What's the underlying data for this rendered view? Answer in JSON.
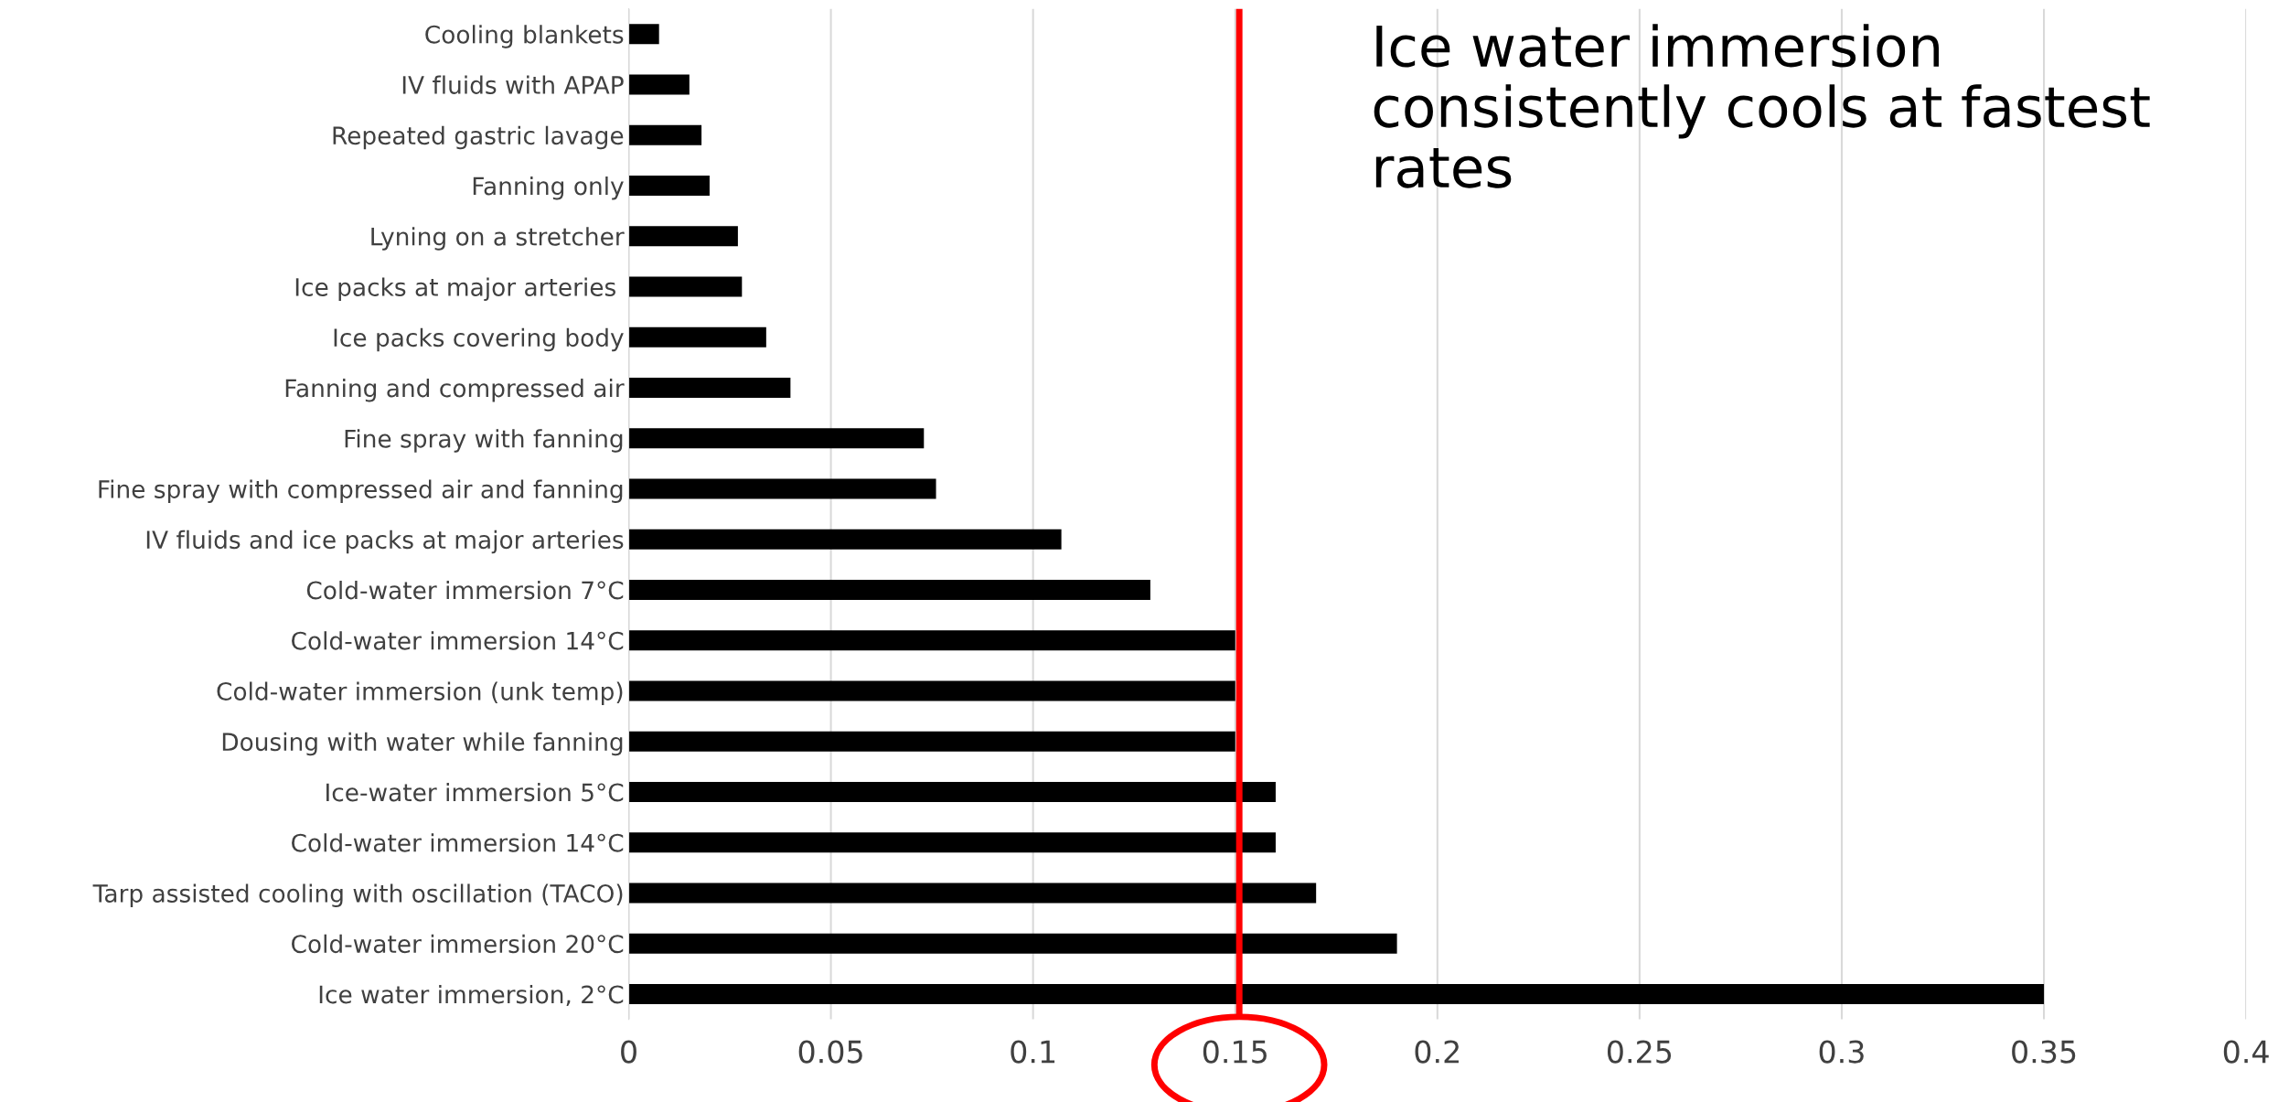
{
  "chart_data": {
    "type": "bar",
    "orientation": "horizontal",
    "categories": [
      "Cooling blankets",
      "IV fluids with APAP",
      "Repeated gastric lavage",
      "Fanning only",
      "Lyning on a stretcher",
      "Ice packs at major arteries ",
      "Ice packs covering body",
      "Fanning and compressed air",
      "Fine spray with fanning",
      "Fine spray with compressed air and fanning",
      "IV fluids and ice packs at major arteries",
      "Cold-water immersion 7°C",
      "Cold-water immersion 14°C",
      "Cold-water immersion (unk temp)",
      "Dousing with water while fanning",
      "Ice-water immersion 5°C",
      "Cold-water immersion 14°C",
      "Tarp assisted cooling with oscillation (TACO)",
      "Cold-water immersion 20°C",
      "Ice water immersion, 2°C"
    ],
    "values": [
      0.0075,
      0.015,
      0.018,
      0.02,
      0.027,
      0.028,
      0.034,
      0.04,
      0.073,
      0.076,
      0.107,
      0.129,
      0.15,
      0.15,
      0.15,
      0.16,
      0.16,
      0.17,
      0.19,
      0.35
    ],
    "color": "#000000",
    "xlim": [
      0,
      0.4
    ],
    "xticks": [
      0,
      0.05,
      0.1,
      0.15,
      0.2,
      0.25,
      0.3,
      0.35,
      0.4
    ],
    "grid": "x",
    "ref_lines": [
      {
        "axis": "x",
        "value": 0.151,
        "label": null,
        "color": "#ff0000"
      }
    ],
    "annotations": [
      "Ice water immersion consistently cools at fastest rates"
    ]
  }
}
